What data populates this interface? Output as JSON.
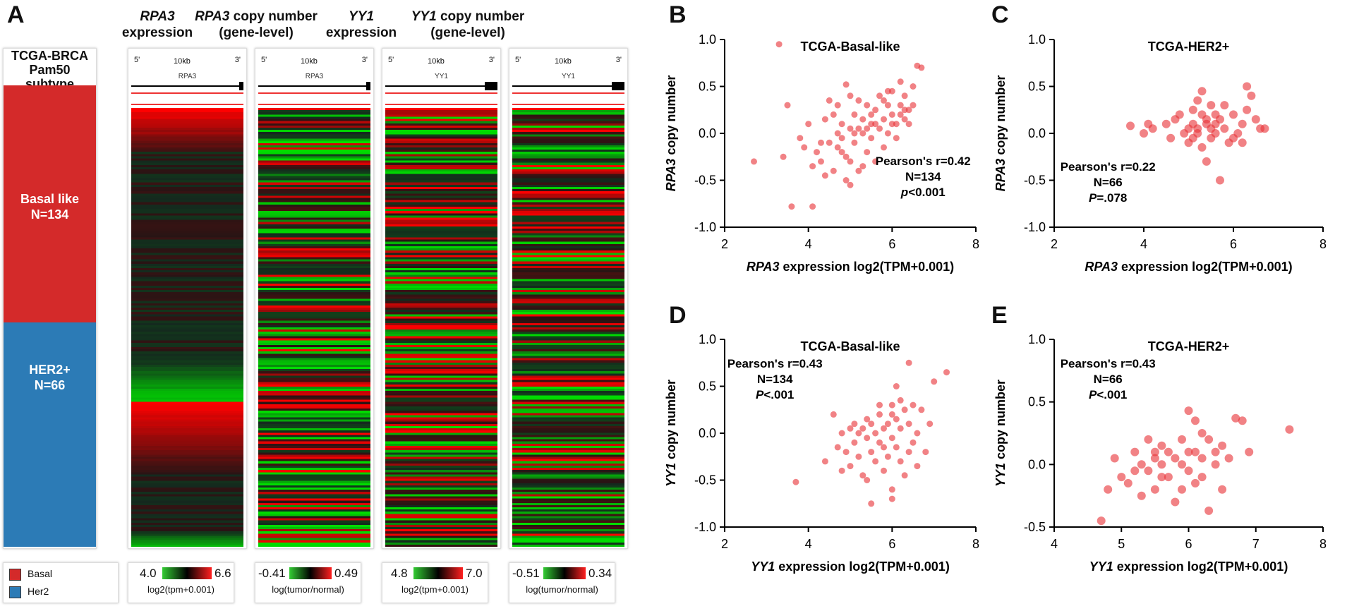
{
  "figure": {
    "panel_letters": {
      "a": "A",
      "b": "B",
      "c": "C",
      "d": "D",
      "e": "E"
    },
    "panel_a": {
      "subtype_header": [
        "TCGA-BRCA",
        "Pam50",
        "subtype"
      ],
      "groups": [
        {
          "label": "Basal like",
          "n_label": "N=134",
          "color": "#d42a2a"
        },
        {
          "label": "HER2+",
          "n_label": "N=66",
          "color": "#2c7bb6"
        }
      ],
      "legend": [
        {
          "label": "Basal",
          "color": "#d42a2a"
        },
        {
          "label": "Her2",
          "color": "#2c7bb6"
        }
      ],
      "columns": [
        {
          "gene": "RPA3",
          "header_rest": "",
          "header_line2": "expression",
          "track_gene": "RPA3",
          "scale": "10kb",
          "end5": "5'",
          "end3": "3'",
          "legend_min": "4.0",
          "legend_max": "6.6",
          "legend_caption": "log2(tpm+0.001)"
        },
        {
          "gene": "RPA3",
          "header_rest": " copy number",
          "header_line2": "(gene-level)",
          "track_gene": "RPA3",
          "scale": "10kb",
          "end5": "5'",
          "end3": "3'",
          "legend_min": "-0.41",
          "legend_max": "0.49",
          "legend_caption": "log(tumor/normal)"
        },
        {
          "gene": "YY1",
          "header_rest": "",
          "header_line2": "expression",
          "track_gene": "YY1",
          "scale": "10kb",
          "end5": "5'",
          "end3": "3'",
          "legend_min": "4.8",
          "legend_max": "7.0",
          "legend_caption": "log2(tpm+0.001)"
        },
        {
          "gene": "YY1",
          "header_rest": " copy number",
          "header_line2": "(gene-level)",
          "track_gene": "YY1",
          "scale": "10kb",
          "end5": "5'",
          "end3": "3'",
          "legend_min": "-0.51",
          "legend_max": "0.34",
          "legend_caption": "log(tumor/normal)"
        }
      ]
    }
  },
  "chart_data": [
    {
      "type": "scatter",
      "panel": "B",
      "title": "TCGA-Basal-like",
      "xlabel_gene": "RPA3",
      "xlabel_rest": " expression log2(TPM+0.001)",
      "ylabel_gene": "RPA3",
      "ylabel_rest": " copy number",
      "xlim": [
        2,
        8
      ],
      "ylim": [
        -1.0,
        1.0
      ],
      "xticks": [
        "2",
        "4",
        "6",
        "8"
      ],
      "yticks": [
        "-1.0",
        "-0.5",
        "0.0",
        "0.5",
        "1.0"
      ],
      "annotation": {
        "r": "Pearson's r=0.42",
        "n": "N=134",
        "p_letter": "p",
        "p_rest": "<0.001",
        "p_italic": true,
        "align": "right"
      },
      "point_color": "#e8353a",
      "points": [
        [
          3.3,
          0.95
        ],
        [
          2.7,
          -0.3
        ],
        [
          3.5,
          0.3
        ],
        [
          3.4,
          -0.25
        ],
        [
          3.6,
          -0.78
        ],
        [
          4.1,
          -0.78
        ],
        [
          3.8,
          -0.05
        ],
        [
          3.9,
          -0.15
        ],
        [
          4.0,
          0.1
        ],
        [
          4.2,
          -0.2
        ],
        [
          4.3,
          -0.3
        ],
        [
          4.1,
          -0.35
        ],
        [
          4.4,
          0.15
        ],
        [
          4.5,
          -0.1
        ],
        [
          4.5,
          0.35
        ],
        [
          4.6,
          -0.4
        ],
        [
          4.7,
          0.0
        ],
        [
          4.7,
          0.3
        ],
        [
          4.8,
          -0.2
        ],
        [
          4.8,
          0.1
        ],
        [
          4.9,
          0.52
        ],
        [
          4.9,
          -0.5
        ],
        [
          5.0,
          -0.55
        ],
        [
          5.0,
          0.05
        ],
        [
          5.0,
          -0.3
        ],
        [
          5.1,
          0.2
        ],
        [
          5.1,
          -0.1
        ],
        [
          5.2,
          0.35
        ],
        [
          5.2,
          -0.4
        ],
        [
          5.3,
          0.0
        ],
        [
          5.3,
          0.15
        ],
        [
          5.4,
          -0.2
        ],
        [
          5.4,
          0.3
        ],
        [
          5.5,
          -0.05
        ],
        [
          5.5,
          0.1
        ],
        [
          5.6,
          0.25
        ],
        [
          5.6,
          -0.3
        ],
        [
          5.7,
          0.05
        ],
        [
          5.7,
          0.4
        ],
        [
          5.8,
          0.15
        ],
        [
          5.8,
          -0.15
        ],
        [
          5.9,
          0.3
        ],
        [
          5.9,
          0.0
        ],
        [
          6.0,
          0.2
        ],
        [
          6.0,
          0.45
        ],
        [
          6.1,
          0.1
        ],
        [
          6.1,
          -0.05
        ],
        [
          6.2,
          0.3
        ],
        [
          6.2,
          0.55
        ],
        [
          6.3,
          0.15
        ],
        [
          6.3,
          0.4
        ],
        [
          6.4,
          0.25
        ],
        [
          6.5,
          0.5
        ],
        [
          6.6,
          0.72
        ],
        [
          6.7,
          0.7
        ],
        [
          6.4,
          0.1
        ],
        [
          6.5,
          0.3
        ],
        [
          5.0,
          0.4
        ],
        [
          4.6,
          0.2
        ],
        [
          4.3,
          -0.1
        ],
        [
          4.9,
          -0.25
        ],
        [
          5.2,
          0.05
        ],
        [
          5.5,
          0.2
        ],
        [
          5.8,
          0.35
        ],
        [
          6.0,
          0.1
        ],
        [
          6.3,
          0.25
        ],
        [
          4.7,
          -0.15
        ],
        [
          5.3,
          -0.35
        ],
        [
          4.4,
          -0.45
        ],
        [
          5.6,
          0.1
        ],
        [
          5.4,
          0.05
        ],
        [
          5.1,
          0.0
        ],
        [
          4.8,
          -0.05
        ],
        [
          5.9,
          0.45
        ],
        [
          6.2,
          0.2
        ]
      ]
    },
    {
      "type": "scatter",
      "panel": "C",
      "title": "TCGA-HER2+",
      "xlabel_gene": "RPA3",
      "xlabel_rest": " expression log2(TPM+0.001)",
      "ylabel_gene": "RPA3",
      "ylabel_rest": " copy number",
      "xlim": [
        2,
        8
      ],
      "ylim": [
        -1.0,
        1.0
      ],
      "xticks": [
        "2",
        "4",
        "6",
        "8"
      ],
      "yticks": [
        "-1.0",
        "-0.5",
        "0.0",
        "0.5",
        "1.0"
      ],
      "annotation": {
        "r": "Pearson's r=0.22",
        "n": "N=66",
        "p_letter": "P",
        "p_rest": "=.078",
        "p_italic": true,
        "align": "left"
      },
      "point_color": "#e8353a",
      "points": [
        [
          3.7,
          0.08
        ],
        [
          4.0,
          0.0
        ],
        [
          4.1,
          0.1
        ],
        [
          4.2,
          0.05
        ],
        [
          4.5,
          0.1
        ],
        [
          4.6,
          -0.05
        ],
        [
          4.7,
          0.15
        ],
        [
          4.8,
          0.2
        ],
        [
          4.9,
          0.0
        ],
        [
          5.0,
          0.05
        ],
        [
          5.0,
          -0.1
        ],
        [
          5.1,
          0.25
        ],
        [
          5.1,
          0.1
        ],
        [
          5.2,
          0.35
        ],
        [
          5.2,
          0.0
        ],
        [
          5.3,
          0.45
        ],
        [
          5.3,
          0.2
        ],
        [
          5.3,
          -0.15
        ],
        [
          5.4,
          0.1
        ],
        [
          5.4,
          -0.3
        ],
        [
          5.5,
          0.3
        ],
        [
          5.5,
          0.05
        ],
        [
          5.5,
          -0.05
        ],
        [
          5.6,
          0.2
        ],
        [
          5.6,
          0.0
        ],
        [
          5.7,
          0.15
        ],
        [
          5.7,
          -0.5
        ],
        [
          5.8,
          0.3
        ],
        [
          5.8,
          0.05
        ],
        [
          5.9,
          -0.1
        ],
        [
          6.0,
          0.2
        ],
        [
          6.1,
          0.0
        ],
        [
          6.2,
          0.1
        ],
        [
          6.3,
          0.5
        ],
        [
          6.4,
          0.4
        ],
        [
          6.3,
          0.25
        ],
        [
          6.5,
          0.15
        ],
        [
          6.6,
          0.05
        ],
        [
          6.7,
          0.05
        ],
        [
          6.2,
          -0.1
        ],
        [
          6.0,
          -0.05
        ],
        [
          5.4,
          0.15
        ],
        [
          5.2,
          0.05
        ],
        [
          5.6,
          0.1
        ],
        [
          5.1,
          -0.05
        ]
      ]
    },
    {
      "type": "scatter",
      "panel": "D",
      "title": "TCGA-Basal-like",
      "xlabel_gene": "YY1",
      "xlabel_rest": " expression log2(TPM+0.001)",
      "ylabel_gene": "YY1",
      "ylabel_rest": " copy number",
      "xlim": [
        2,
        8
      ],
      "ylim": [
        -1.0,
        1.0
      ],
      "xticks": [
        "2",
        "4",
        "6",
        "8"
      ],
      "yticks": [
        "-1.0",
        "-0.5",
        "0.0",
        "0.5",
        "1.0"
      ],
      "annotation": {
        "r": "Pearson's r=0.43",
        "n": "N=134",
        "p_letter": "P",
        "p_rest": "<.001",
        "p_italic": true,
        "align": "left"
      },
      "point_color": "#e8353a",
      "points": [
        [
          3.7,
          -0.52
        ],
        [
          4.4,
          -0.3
        ],
        [
          4.6,
          0.2
        ],
        [
          4.7,
          -0.15
        ],
        [
          4.8,
          -0.4
        ],
        [
          4.8,
          0.0
        ],
        [
          4.9,
          -0.2
        ],
        [
          5.0,
          -0.35
        ],
        [
          5.1,
          0.1
        ],
        [
          5.1,
          -0.1
        ],
        [
          5.2,
          -0.25
        ],
        [
          5.3,
          0.05
        ],
        [
          5.3,
          -0.45
        ],
        [
          5.4,
          -0.05
        ],
        [
          5.4,
          0.15
        ],
        [
          5.5,
          -0.2
        ],
        [
          5.5,
          -0.75
        ],
        [
          5.6,
          0.0
        ],
        [
          5.6,
          -0.3
        ],
        [
          5.7,
          0.2
        ],
        [
          5.7,
          -0.1
        ],
        [
          5.8,
          0.05
        ],
        [
          5.8,
          -0.4
        ],
        [
          5.9,
          0.1
        ],
        [
          5.9,
          -0.25
        ],
        [
          6.0,
          0.3
        ],
        [
          6.0,
          -0.05
        ],
        [
          6.0,
          -0.6
        ],
        [
          6.1,
          0.5
        ],
        [
          6.1,
          0.15
        ],
        [
          6.1,
          -0.15
        ],
        [
          6.2,
          0.05
        ],
        [
          6.2,
          -0.3
        ],
        [
          6.3,
          0.25
        ],
        [
          6.3,
          -0.45
        ],
        [
          6.4,
          0.75
        ],
        [
          6.4,
          0.1
        ],
        [
          6.5,
          -0.1
        ],
        [
          6.5,
          0.3
        ],
        [
          6.6,
          0.0
        ],
        [
          6.7,
          0.25
        ],
        [
          6.8,
          -0.2
        ],
        [
          7.0,
          0.55
        ],
        [
          7.3,
          0.65
        ],
        [
          6.9,
          0.1
        ],
        [
          5.2,
          0.0
        ],
        [
          5.5,
          0.1
        ],
        [
          5.8,
          -0.15
        ],
        [
          6.2,
          0.35
        ],
        [
          6.6,
          -0.35
        ],
        [
          5.0,
          0.05
        ],
        [
          5.4,
          -0.5
        ],
        [
          6.0,
          0.2
        ],
        [
          6.4,
          -0.2
        ],
        [
          5.7,
          0.3
        ],
        [
          6.0,
          -0.7
        ]
      ]
    },
    {
      "type": "scatter",
      "panel": "E",
      "title": "TCGA-HER2+",
      "xlabel_gene": "YY1",
      "xlabel_rest": " expression log2(TPM+0.001)",
      "ylabel_gene": "YY1",
      "ylabel_rest": " copy number",
      "xlim": [
        4,
        8
      ],
      "ylim": [
        -0.5,
        1.0
      ],
      "xticks": [
        "4",
        "5",
        "6",
        "7",
        "8"
      ],
      "yticks": [
        "-0.5",
        "0.0",
        "0.5",
        "1.0"
      ],
      "annotation": {
        "r": "Pearson's r=0.43",
        "n": "N=66",
        "p_letter": "P",
        "p_rest": "<.001",
        "p_italic": true,
        "align": "left"
      },
      "point_color": "#e8353a",
      "points": [
        [
          4.7,
          -0.45
        ],
        [
          4.8,
          -0.2
        ],
        [
          4.9,
          0.05
        ],
        [
          5.0,
          -0.1
        ],
        [
          5.1,
          -0.15
        ],
        [
          5.2,
          0.1
        ],
        [
          5.3,
          0.0
        ],
        [
          5.3,
          -0.25
        ],
        [
          5.4,
          0.2
        ],
        [
          5.4,
          -0.05
        ],
        [
          5.5,
          0.05
        ],
        [
          5.5,
          -0.2
        ],
        [
          5.6,
          0.15
        ],
        [
          5.6,
          0.0
        ],
        [
          5.7,
          -0.1
        ],
        [
          5.7,
          0.1
        ],
        [
          5.8,
          0.05
        ],
        [
          5.8,
          -0.3
        ],
        [
          5.9,
          0.2
        ],
        [
          5.9,
          0.0
        ],
        [
          6.0,
          0.43
        ],
        [
          6.0,
          -0.05
        ],
        [
          6.1,
          0.35
        ],
        [
          6.1,
          0.1
        ],
        [
          6.1,
          -0.15
        ],
        [
          6.2,
          0.05
        ],
        [
          6.2,
          -0.1
        ],
        [
          6.3,
          0.2
        ],
        [
          6.3,
          -0.37
        ],
        [
          6.4,
          0.0
        ],
        [
          6.5,
          0.15
        ],
        [
          6.5,
          -0.2
        ],
        [
          6.6,
          0.05
        ],
        [
          6.7,
          0.37
        ],
        [
          6.8,
          0.35
        ],
        [
          6.9,
          0.1
        ],
        [
          7.5,
          0.28
        ],
        [
          6.0,
          0.1
        ],
        [
          5.5,
          0.1
        ],
        [
          5.2,
          -0.05
        ],
        [
          6.2,
          0.25
        ],
        [
          5.9,
          -0.2
        ],
        [
          6.4,
          0.1
        ],
        [
          5.6,
          -0.1
        ]
      ]
    }
  ]
}
